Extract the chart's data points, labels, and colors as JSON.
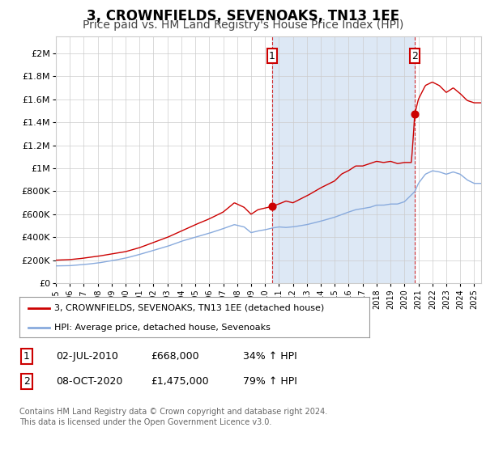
{
  "title": "3, CROWNFIELDS, SEVENOAKS, TN13 1EE",
  "subtitle": "Price paid vs. HM Land Registry's House Price Index (HPI)",
  "title_fontsize": 12,
  "subtitle_fontsize": 10,
  "red_label": "3, CROWNFIELDS, SEVENOAKS, TN13 1EE (detached house)",
  "blue_label": "HPI: Average price, detached house, Sevenoaks",
  "sale1_date": 2010.5,
  "sale1_price": 668000,
  "sale1_text": "02-JUL-2010",
  "sale1_amount": "£668,000",
  "sale1_hpi": "34% ↑ HPI",
  "sale2_date": 2020.75,
  "sale2_price": 1475000,
  "sale2_text": "08-OCT-2020",
  "sale2_amount": "£1,475,000",
  "sale2_hpi": "79% ↑ HPI",
  "ylabel_vals": [
    0,
    200000,
    400000,
    600000,
    800000,
    1000000,
    1200000,
    1400000,
    1600000,
    1800000,
    2000000
  ],
  "ylabel_texts": [
    "£0",
    "£200K",
    "£400K",
    "£600K",
    "£800K",
    "£1M",
    "£1.2M",
    "£1.4M",
    "£1.6M",
    "£1.8M",
    "£2M"
  ],
  "ylim": [
    0,
    2150000
  ],
  "xlim_start": 1995,
  "xlim_end": 2025.5,
  "background_color": "#ffffff",
  "grid_color": "#cccccc",
  "red_color": "#cc0000",
  "blue_color": "#88aadd",
  "shade_color": "#dde8f5",
  "footer_text": "Contains HM Land Registry data © Crown copyright and database right 2024.\nThis data is licensed under the Open Government Licence v3.0.",
  "red_keypoints_x": [
    1995,
    1996,
    1997,
    1998,
    1999,
    2000,
    2001,
    2002,
    2003,
    2004,
    2005,
    2006,
    2007,
    2007.8,
    2008.5,
    2009,
    2009.5,
    2010.5,
    2011,
    2011.5,
    2012,
    2013,
    2014,
    2015,
    2015.5,
    2016,
    2016.5,
    2017,
    2017.5,
    2018,
    2018.5,
    2019,
    2019.5,
    2020,
    2020.5,
    2020.75,
    2021,
    2021.5,
    2022,
    2022.5,
    2023,
    2023.5,
    2024,
    2024.5,
    2025
  ],
  "red_keypoints_y": [
    200000,
    205000,
    218000,
    235000,
    255000,
    275000,
    310000,
    355000,
    400000,
    455000,
    510000,
    560000,
    620000,
    700000,
    660000,
    600000,
    640000,
    668000,
    690000,
    715000,
    700000,
    760000,
    830000,
    890000,
    950000,
    980000,
    1020000,
    1020000,
    1040000,
    1060000,
    1050000,
    1060000,
    1040000,
    1050000,
    1050000,
    1475000,
    1600000,
    1720000,
    1750000,
    1720000,
    1660000,
    1700000,
    1650000,
    1590000,
    1570000
  ],
  "blue_keypoints_x": [
    1995,
    1996,
    1997,
    1998,
    1999,
    2000,
    2001,
    2002,
    2003,
    2004,
    2005,
    2006,
    2007,
    2007.8,
    2008.5,
    2009,
    2009.5,
    2010,
    2010.5,
    2011,
    2011.5,
    2012,
    2012.5,
    2013,
    2014,
    2015,
    2016,
    2016.5,
    2017,
    2017.5,
    2018,
    2018.5,
    2019,
    2019.5,
    2020,
    2020.75,
    2021,
    2021.5,
    2022,
    2022.5,
    2023,
    2023.5,
    2024,
    2024.5,
    2025
  ],
  "blue_keypoints_y": [
    150000,
    152000,
    162000,
    175000,
    195000,
    218000,
    250000,
    285000,
    320000,
    365000,
    400000,
    435000,
    475000,
    510000,
    490000,
    440000,
    455000,
    465000,
    480000,
    490000,
    485000,
    490000,
    500000,
    510000,
    540000,
    575000,
    620000,
    640000,
    650000,
    660000,
    680000,
    680000,
    690000,
    690000,
    710000,
    800000,
    870000,
    950000,
    980000,
    970000,
    950000,
    970000,
    950000,
    900000,
    870000
  ],
  "noise_seed_red": 42,
  "noise_seed_blue": 7,
  "noise_amp_red": 0.012,
  "noise_amp_blue": 0.01
}
